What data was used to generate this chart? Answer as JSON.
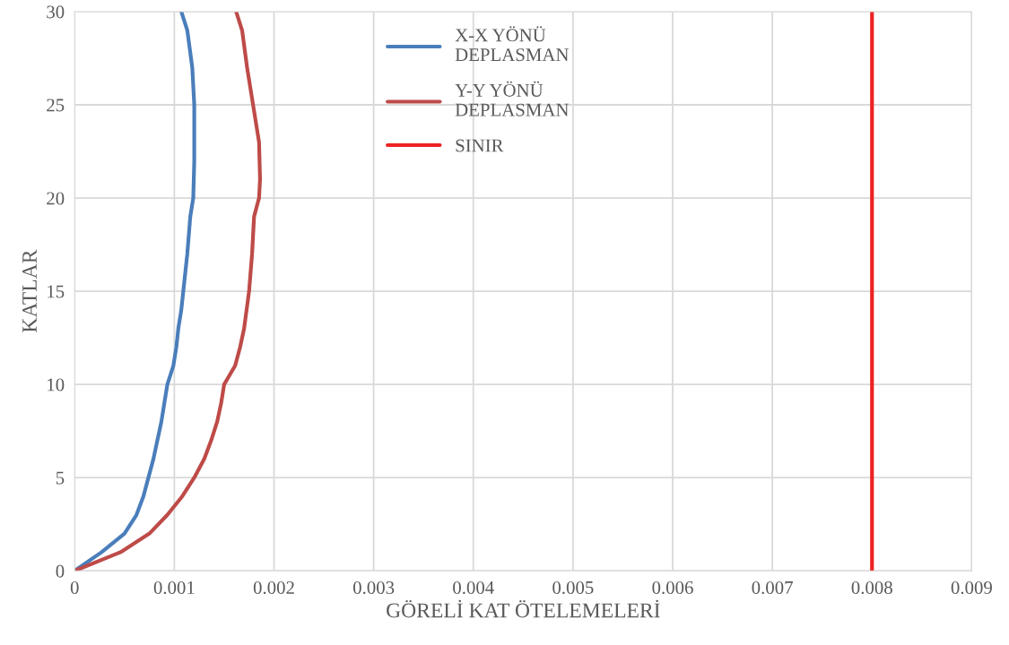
{
  "chart_data": {
    "type": "line",
    "xlabel": "GÖRELİ KAT ÖTELEMELERİ",
    "ylabel": "KATLAR",
    "xlim": [
      0,
      0.009
    ],
    "xticks": [
      0,
      0.001,
      0.002,
      0.003,
      0.004,
      0.005,
      0.006,
      0.007,
      0.008,
      0.009
    ],
    "ylim": [
      0,
      30
    ],
    "yticks": [
      0,
      5,
      10,
      15,
      20,
      25,
      30
    ],
    "grid": true,
    "legend": "top",
    "marker": "none",
    "line_style": "solid",
    "series": [
      {
        "name": "X-X YÖNÜ DEPLASMAN",
        "color": "#4a7ebb",
        "x": [
          0,
          0.00027,
          0.0005,
          0.00062,
          0.00069,
          0.00074,
          0.00079,
          0.00083,
          0.00087,
          0.0009,
          0.00093,
          0.00099,
          0.00102,
          0.00104,
          0.00107,
          0.00109,
          0.00113,
          0.00116,
          0.00119,
          0.0012,
          0.0012,
          0.00118,
          0.00113,
          0.00107
        ],
        "values": [
          0,
          1,
          2,
          3,
          4,
          5,
          6,
          7,
          8,
          9,
          10,
          11,
          12,
          13,
          14,
          15,
          17,
          19,
          20,
          22,
          25,
          27,
          29,
          30
        ]
      },
      {
        "name": "Y-Y YÖNÜ DEPLASMAN",
        "color": "#be4b48",
        "x": [
          0,
          0.00046,
          0.00075,
          0.00093,
          0.00108,
          0.0012,
          0.0013,
          0.00137,
          0.00143,
          0.00147,
          0.0015,
          0.00161,
          0.00166,
          0.0017,
          0.00175,
          0.00178,
          0.0018,
          0.00185,
          0.00186,
          0.00185,
          0.00179,
          0.00173,
          0.00168,
          0.00162
        ],
        "values": [
          0,
          1,
          2,
          3,
          4,
          5,
          6,
          7,
          8,
          9,
          10,
          11,
          12,
          13,
          15,
          17,
          19,
          20,
          21,
          23,
          25,
          27,
          29,
          30
        ]
      },
      {
        "name": "SINIR",
        "color": "#ee2222",
        "x": [
          0.008,
          0.008
        ],
        "values": [
          0,
          30
        ]
      }
    ]
  }
}
